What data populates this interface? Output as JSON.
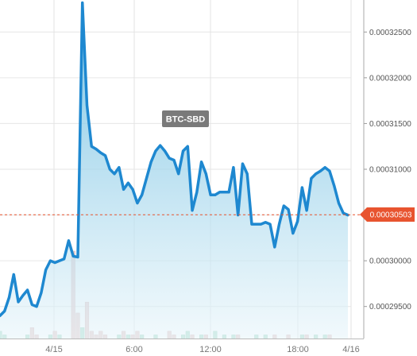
{
  "chart_data": {
    "type": "area",
    "title": "BTC-SBD",
    "series": [
      {
        "values": [
          0.000294,
          0.0002945,
          0.000296,
          0.0002985,
          0.0002955,
          0.0002962,
          0.0002968,
          0.0002952,
          0.000295,
          0.0002965,
          0.000299,
          0.0003,
          0.0002998,
          0.0003,
          0.0003002,
          0.0003022,
          0.0003005,
          0.0003004,
          0.0003282,
          0.000317,
          0.0003125,
          0.0003122,
          0.0003118,
          0.0003115,
          0.00031,
          0.0003095,
          0.0003102,
          0.0003078,
          0.0003085,
          0.0003078,
          0.0003063,
          0.0003072,
          0.000309,
          0.0003108,
          0.000312,
          0.0003126,
          0.000312,
          0.0003112,
          0.000311,
          0.0003095,
          0.000312,
          0.0003125,
          0.0003055,
          0.0003075,
          0.0003108,
          0.0003095,
          0.0003072,
          0.0003072,
          0.0003075,
          0.0003075,
          0.0003075,
          0.0003102,
          0.000305,
          0.0003106,
          0.0003095,
          0.000304,
          0.000304,
          0.000304,
          0.0003042,
          0.000304,
          0.0003015,
          0.000304,
          0.000306,
          0.0003056,
          0.000303,
          0.0003043,
          0.000308,
          0.0003055,
          0.000309,
          0.0003095,
          0.0003098,
          0.0003102,
          0.0003098,
          0.0003082,
          0.0003063,
          0.0003052,
          0.000305
        ]
      }
    ],
    "x_labels": [
      "4/15",
      "6:00",
      "12:00",
      "18:00",
      "4/16"
    ],
    "y_ticks": [
      "0.00029500",
      "0.00030000",
      "0.00030500",
      "0.00031000",
      "0.00031500",
      "0.00032000",
      "0.00032500"
    ],
    "y_tick_values": [
      0.000295,
      0.0003,
      0.000305,
      0.00031,
      0.000315,
      0.00032,
      0.000325
    ],
    "ylim": [
      0.0002915,
      0.0003285
    ],
    "current_price": 0.00030503,
    "current_price_label": "0.00030503",
    "volume": [
      2,
      1,
      0,
      0,
      0,
      0,
      1,
      3,
      1,
      0,
      0,
      1,
      2,
      1,
      0,
      0,
      24,
      7,
      3,
      10,
      2,
      1,
      2,
      1,
      0,
      0,
      1,
      2,
      1,
      1,
      2,
      1,
      0,
      0,
      1,
      0,
      0,
      2,
      1,
      0,
      1,
      2,
      1,
      0,
      1,
      1,
      0,
      2,
      0,
      1,
      0,
      1,
      1,
      0,
      0,
      0,
      1,
      0,
      1,
      0,
      1,
      0,
      0,
      1,
      0,
      0,
      1,
      1,
      0,
      1,
      0,
      1,
      1,
      0,
      0,
      0,
      0
    ],
    "grid": true,
    "colors": {
      "line": "#1e88d0",
      "area_top": "#5fb7de",
      "area_bottom": "#e8f5fa",
      "price_tag": "#e8542f",
      "volume_up": "#a9dcc8",
      "volume_down": "#e6c6c6",
      "label_bg": "#7a7a7a"
    }
  }
}
